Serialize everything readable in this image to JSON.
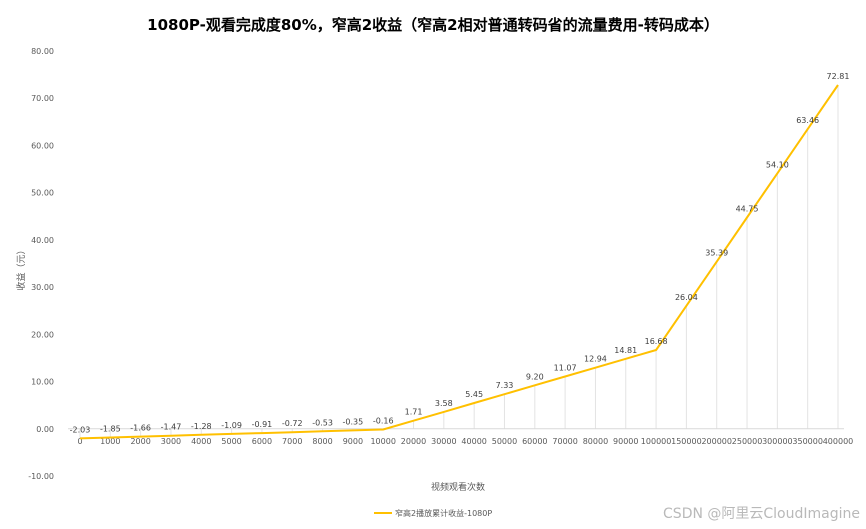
{
  "chart_data": {
    "type": "line",
    "title": "1080P-观看完成度80%，窄高2收益（窄高2相对普通转码省的流量费用-转码成本）",
    "xlabel": "视频观看次数",
    "ylabel": "收益（元）",
    "ylim": [
      -10,
      80
    ],
    "yticks": [
      "-10.00",
      "0.00",
      "10.00",
      "20.00",
      "30.00",
      "40.00",
      "50.00",
      "60.00",
      "70.00",
      "80.00"
    ],
    "grid": "vertical drop lines",
    "legend_position": "bottom",
    "color": "#FFC000",
    "categories": [
      "0",
      "1000",
      "2000",
      "3000",
      "4000",
      "5000",
      "6000",
      "7000",
      "8000",
      "9000",
      "10000",
      "20000",
      "30000",
      "40000",
      "50000",
      "60000",
      "70000",
      "80000",
      "90000",
      "100000",
      "150000",
      "200000",
      "250000",
      "300000",
      "350000",
      "400000"
    ],
    "series": [
      {
        "name": "窄高2播放累计收益-1080P",
        "values": [
          -2.03,
          -1.85,
          -1.66,
          -1.47,
          -1.28,
          -1.09,
          -0.91,
          -0.72,
          -0.53,
          -0.35,
          -0.16,
          1.71,
          3.58,
          5.45,
          7.33,
          9.2,
          11.07,
          12.94,
          14.81,
          16.68,
          26.04,
          35.39,
          44.75,
          54.1,
          63.46,
          72.81
        ],
        "labels": [
          "-2.03",
          "-1.85",
          "-1.66",
          "-1.47",
          "-1.28",
          "-1.09",
          "-0.91",
          "-0.72",
          "-0.53",
          "-0.35",
          "-0.16",
          "1.71",
          "3.58",
          "5.45",
          "7.33",
          "9.20",
          "11.07",
          "12.94",
          "14.81",
          "16.68",
          "26.04",
          "35.39",
          "44.75",
          "54.10",
          "63.46",
          "72.81"
        ]
      }
    ]
  },
  "watermark": "CSDN @阿里云CloudImagine"
}
